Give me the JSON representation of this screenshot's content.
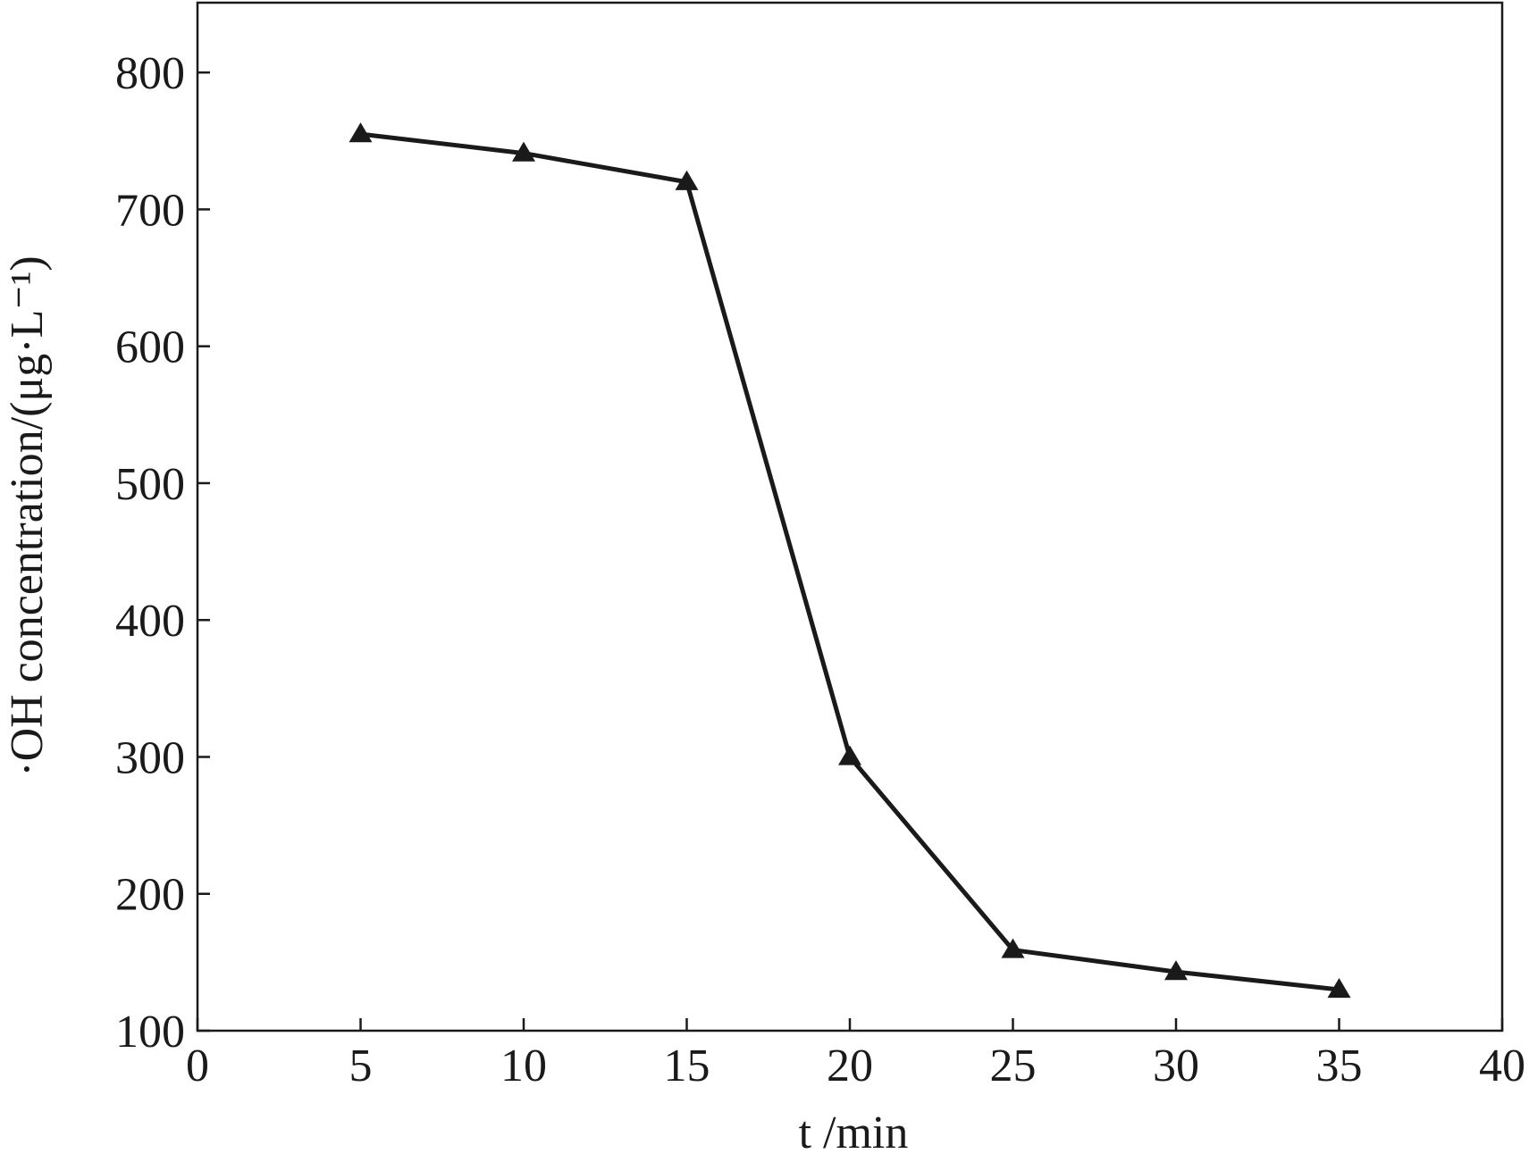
{
  "chart_data": {
    "type": "line",
    "x_label": "t /min",
    "y_label": "·OH concentration/(μg·L⁻¹)",
    "x": [
      5,
      10,
      15,
      20,
      25,
      30,
      35
    ],
    "values": [
      755,
      741,
      720,
      300,
      159,
      143,
      130
    ],
    "color": "#1a1a1a",
    "marker": "triangle",
    "xlim": [
      0,
      40
    ],
    "xticks": [
      0,
      5,
      10,
      15,
      20,
      25,
      30,
      35,
      40
    ],
    "ylim": [
      100,
      851
    ],
    "yticks": [
      100,
      200,
      300,
      400,
      500,
      600,
      700,
      800
    ]
  }
}
